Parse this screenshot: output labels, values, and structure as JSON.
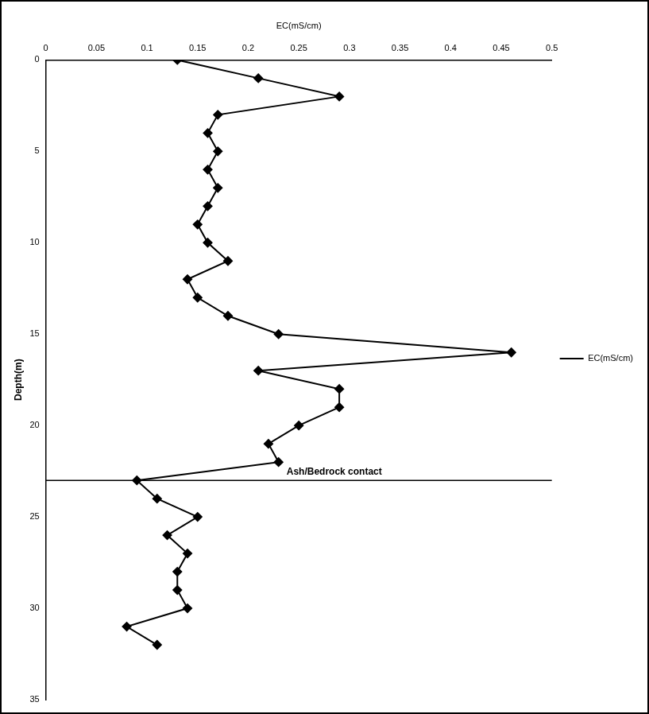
{
  "chart_data": {
    "type": "line",
    "x_label": "EC(mS/cm)",
    "y_label": "Depth(m)",
    "y": [
      0,
      1,
      2,
      3,
      4,
      5,
      6,
      7,
      8,
      9,
      10,
      11,
      12,
      13,
      14,
      15,
      16,
      17,
      18,
      19,
      20,
      21,
      22,
      23,
      24,
      25,
      26,
      27,
      28,
      29,
      30,
      31,
      32
    ],
    "series": [
      {
        "name": "EC(mS/cm)",
        "color": "#000000",
        "marker": "diamond",
        "line_style": "solid",
        "values": [
          0.13,
          0.21,
          0.29,
          0.17,
          0.16,
          0.17,
          0.16,
          0.17,
          0.16,
          0.15,
          0.16,
          0.18,
          0.14,
          0.15,
          0.18,
          0.23,
          0.46,
          0.21,
          0.29,
          0.29,
          0.25,
          0.22,
          0.23,
          0.09,
          0.11,
          0.15,
          0.12,
          0.14,
          0.13,
          0.13,
          0.14,
          0.08,
          0.11
        ]
      }
    ],
    "xlim": [
      0,
      0.5
    ],
    "xticks": [
      0,
      0.05,
      0.1,
      0.15,
      0.2,
      0.25,
      0.3,
      0.35,
      0.4,
      0.45,
      0.5
    ],
    "ylim": [
      0,
      35
    ],
    "yticks": [
      0,
      5,
      10,
      15,
      20,
      25,
      30,
      35
    ],
    "annotations": [
      {
        "text": "Ash/Bedrock contact",
        "y": 23
      }
    ],
    "grid": false,
    "legend": "right"
  }
}
